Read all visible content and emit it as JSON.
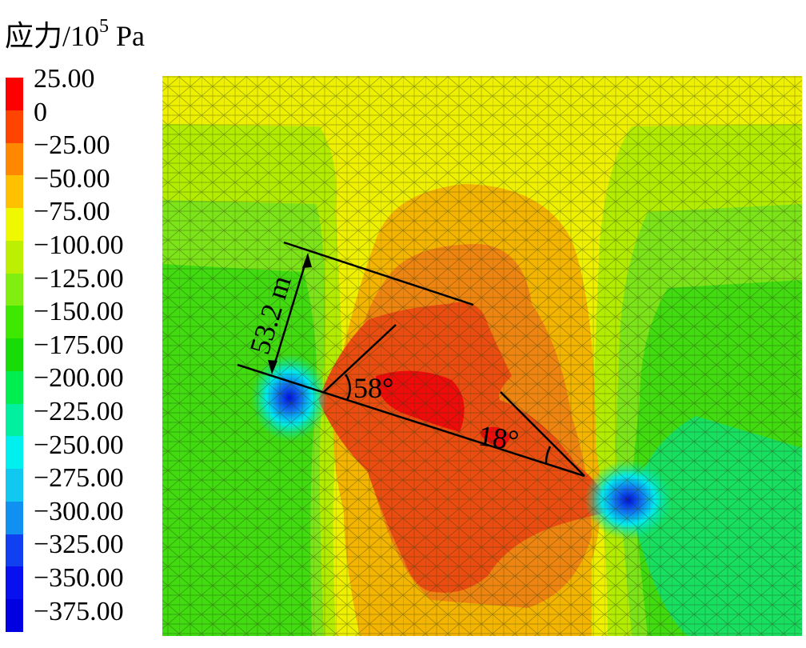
{
  "chart_data": {
    "type": "heatmap",
    "title": "应力/10",
    "title_exponent": "5",
    "title_unit": " Pa",
    "colorbar": {
      "labels": [
        "25.00",
        "0",
        "−25.00",
        "−50.00",
        "−75.00",
        "−100.00",
        "−125.00",
        "−150.00",
        "−175.00",
        "−200.00",
        "−225.00",
        "−250.00",
        "−275.00",
        "−300.00",
        "−325.00",
        "−350.00",
        "−375.00"
      ],
      "colors": [
        "#ff0000",
        "#ff4400",
        "#ff8800",
        "#ffc000",
        "#f0f800",
        "#bcf000",
        "#80ee10",
        "#3ee800",
        "#18dc08",
        "#00ee50",
        "#00f0a0",
        "#00f0f0",
        "#10c8f0",
        "#1090f0",
        "#1040f0",
        "#0810f0",
        "#0000e0"
      ],
      "range": [
        -375,
        25
      ]
    },
    "annotations": {
      "distance": "53.2 m",
      "angle_left": "58°",
      "angle_right": "18°"
    }
  }
}
